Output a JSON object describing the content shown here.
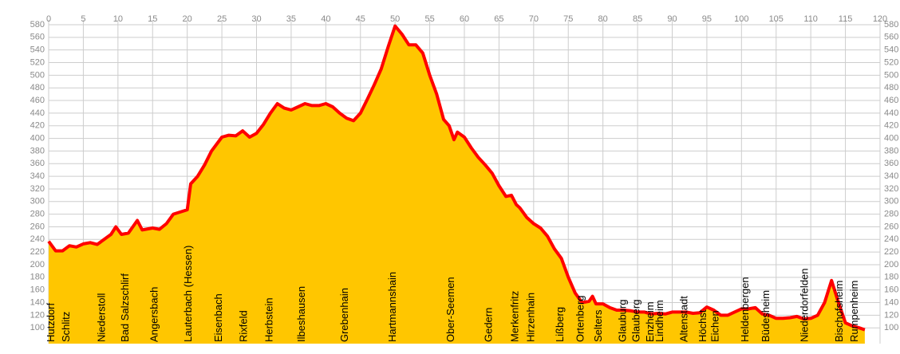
{
  "chart_data": {
    "type": "area",
    "x": [
      0,
      1,
      2,
      3,
      4,
      5,
      6,
      7,
      8,
      9,
      9.7,
      10.5,
      11.5,
      12.8,
      13.5,
      15,
      16,
      17,
      18,
      20,
      20.5,
      21.5,
      22.5,
      23.5,
      25,
      26,
      27,
      28,
      29,
      30,
      31,
      32,
      33,
      34,
      35,
      36,
      37,
      38,
      39,
      40,
      41,
      42,
      43,
      44,
      45,
      46,
      47,
      48,
      49,
      50,
      51,
      52,
      53,
      54,
      55,
      56,
      57,
      57.8,
      58.5,
      59,
      60,
      61,
      62,
      63,
      64,
      65,
      66,
      66.8,
      67.5,
      68,
      69,
      70,
      71,
      72,
      73,
      74,
      75,
      76,
      77,
      78,
      78.5,
      79,
      80,
      81,
      82,
      83,
      84,
      85,
      86,
      87,
      88,
      89,
      90,
      91,
      92,
      93,
      94,
      95,
      96,
      97,
      98,
      99,
      100,
      101,
      102,
      103,
      104,
      105,
      106,
      107,
      108,
      109,
      110,
      111,
      112,
      113,
      114,
      115,
      116,
      117,
      117.8
    ],
    "values": [
      237,
      222,
      222,
      230,
      228,
      233,
      235,
      232,
      240,
      248,
      260,
      248,
      250,
      270,
      255,
      258,
      256,
      265,
      280,
      287,
      328,
      340,
      358,
      380,
      402,
      405,
      404,
      412,
      402,
      408,
      422,
      440,
      455,
      448,
      445,
      450,
      455,
      452,
      452,
      455,
      450,
      440,
      432,
      428,
      440,
      462,
      485,
      510,
      545,
      578,
      565,
      548,
      548,
      535,
      500,
      470,
      430,
      420,
      398,
      410,
      402,
      385,
      370,
      358,
      345,
      325,
      308,
      310,
      295,
      290,
      275,
      265,
      258,
      245,
      225,
      210,
      180,
      155,
      140,
      142,
      150,
      138,
      138,
      132,
      128,
      128,
      127,
      125,
      125,
      122,
      123,
      122,
      125,
      125,
      125,
      123,
      124,
      133,
      128,
      120,
      120,
      125,
      130,
      130,
      132,
      122,
      120,
      115,
      115,
      116,
      118,
      114,
      115,
      120,
      140,
      175,
      140,
      108,
      103,
      100,
      97
    ],
    "fill_color": "#ffc600",
    "line_color": "#ff0000",
    "xlim": [
      0,
      120
    ],
    "xticks": [
      0,
      5,
      10,
      15,
      20,
      25,
      30,
      35,
      40,
      45,
      50,
      55,
      60,
      65,
      70,
      75,
      80,
      85,
      90,
      95,
      100,
      105,
      110,
      115,
      120
    ],
    "ylim": [
      75,
      580
    ],
    "yticks": [
      100,
      120,
      140,
      160,
      180,
      200,
      220,
      240,
      260,
      280,
      300,
      320,
      340,
      360,
      380,
      400,
      420,
      440,
      460,
      480,
      500,
      520,
      540,
      560,
      580
    ],
    "grid": true,
    "stations": [
      {
        "text": "Hutzdorf",
        "x": 0.4
      },
      {
        "text": "Schlitz",
        "x": 2.6
      },
      {
        "text": "Niederstoll",
        "x": 7.7
      },
      {
        "text": "Bad Salzschlirf",
        "x": 11.1
      },
      {
        "text": "Angersbach",
        "x": 15.3
      },
      {
        "text": "Lauterbach (Hessen)",
        "x": 20.2
      },
      {
        "text": "Eisenbach",
        "x": 24.6
      },
      {
        "text": "Rixfeld",
        "x": 28.2
      },
      {
        "text": "Herbstein",
        "x": 31.9
      },
      {
        "text": "Ilbeshausen",
        "x": 36.6
      },
      {
        "text": "Grebenhain",
        "x": 42.8
      },
      {
        "text": "Hartmannshain",
        "x": 49.7
      },
      {
        "text": "Ober-Seemen",
        "x": 58.1
      },
      {
        "text": "Gedern",
        "x": 63.6
      },
      {
        "text": "Merkenfritz",
        "x": 67.4
      },
      {
        "text": "Hirzenhain",
        "x": 69.7
      },
      {
        "text": "Lißberg",
        "x": 73.9
      },
      {
        "text": "Ortenberg",
        "x": 76.8
      },
      {
        "text": "Selters",
        "x": 79.4
      },
      {
        "text": "Glauburg",
        "x": 82.9
      },
      {
        "text": "Glauberg",
        "x": 84.9
      },
      {
        "text": "Enzheim",
        "x": 86.9
      },
      {
        "text": "Lindheim",
        "x": 88.3
      },
      {
        "text": "Altenstadt",
        "x": 91.8
      },
      {
        "text": "Höchst",
        "x": 94.5
      },
      {
        "text": "Eichen",
        "x": 96.3
      },
      {
        "text": "Heldenbergen",
        "x": 100.6
      },
      {
        "text": "Büdesheim",
        "x": 103.6
      },
      {
        "text": "Niederdorfelden",
        "x": 109.2
      },
      {
        "text": "Bischofsheim",
        "x": 114.2
      },
      {
        "text": "Rumpenheim",
        "x": 116.4
      }
    ]
  }
}
